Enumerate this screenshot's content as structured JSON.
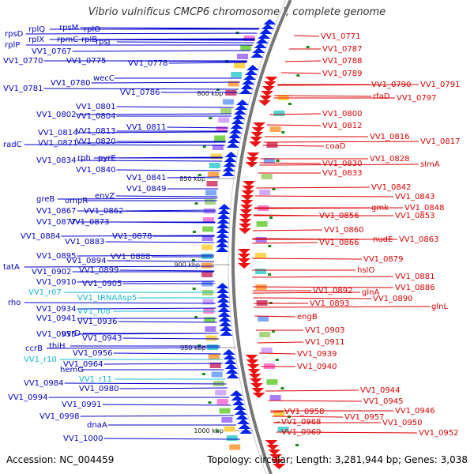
{
  "title": "Vibrio vulnificus CMCP6 chromosome I, complete genome",
  "footer": {
    "accession": "Accession: NC_004459",
    "summary": "Topology: circular; Length: 3,281,944 bp; Genes: 3,038"
  },
  "colors": {
    "left_label": "#0000cc",
    "right_label": "#dd0000",
    "trna_label": "#11bbdd",
    "backbone": "#777777",
    "plus_strand_arrow": "#0022ee",
    "minus_strand_arrow": "#ee1111",
    "cog_tick": "#1a8a1a"
  },
  "scale_labels": [
    "800 kbp",
    "850 kbp",
    "900 kbp",
    "950 kbp",
    "1000 kbp"
  ],
  "left_labels": [
    "rpsD",
    "rplQ",
    "rpsM",
    "rplO",
    "rplP",
    "rplX",
    "rpmC",
    "rplB",
    "rpsJ",
    "VV1_0767",
    "VV1_0770",
    "VV1_0775",
    "VV1_0778",
    "wecC",
    "VV1_0781",
    "VV1_0780",
    "VV1_0786",
    "VV1_0801",
    "VV1_0802",
    "VV1_0804",
    "VV1_0811",
    "VV1_0814",
    "VV1_0813",
    "radC",
    "VV1_0821",
    "VV1_0820",
    "VV1_0834",
    "rph",
    "pyrE",
    "VV1_0840",
    "VV1_0841",
    "VV1_0849",
    "envZ",
    "greB",
    "ompR",
    "VV1_0867",
    "VV1_0862",
    "VV1_0877",
    "VV1_0873",
    "VV1_0884",
    "VV1_0878",
    "VV1_0883",
    "VV1_0895",
    "VV1_0888",
    "VV1_0894",
    "tatA",
    "VV1_0902",
    "VV1_0899",
    "VV1_0910",
    "VV1_0905",
    "rho",
    "VV1_0934",
    "VV1_0941",
    "VV1_0936",
    "VV1_0955",
    "uvrD",
    "VV1_0943",
    "ccrB",
    "thiH",
    "VV1_0956",
    "VV1_0964",
    "hemG",
    "VV1_0984",
    "VV1_0980",
    "VV1_0994",
    "VV1_0991",
    "VV1_0998",
    "dnaA",
    "VV1_1000"
  ],
  "trna_labels": [
    "VV1_r07",
    "VV1_tRNAAsp5",
    "VV1_r08",
    "VV1_r10",
    "VV1_r11"
  ],
  "right_labels": [
    "VV1_0771",
    "VV1_0787",
    "VV1_0788",
    "VV1_0789",
    "VV1_0790",
    "VV1_0791",
    "rfaD",
    "VV1_0797",
    "VV1_0800",
    "VV1_0812",
    "VV1_0816",
    "VV1_0817",
    "coaD",
    "VV1_0828",
    "slmA",
    "VV1_0830",
    "VV1_0833",
    "VV1_0842",
    "VV1_0843",
    "gmk",
    "VV1_0848",
    "VV1_0856",
    "VV1_0853",
    "VV1_0860",
    "nudE",
    "VV1_0863",
    "VV1_0866",
    "VV1_0879",
    "hslO",
    "VV1_0881",
    "VV1_0886",
    "VV1_0892",
    "glnA",
    "VV1_0890",
    "VV1_0893",
    "glnL",
    "engB",
    "VV1_0903",
    "VV1_0911",
    "VV1_0939",
    "VV1_0940",
    "VV1_0944",
    "VV1_0945",
    "VV1_0946",
    "VV1_0958",
    "VV1_0957",
    "VV1_0950",
    "VV1_0968",
    "VV1_0952",
    "VV1_0969"
  ]
}
